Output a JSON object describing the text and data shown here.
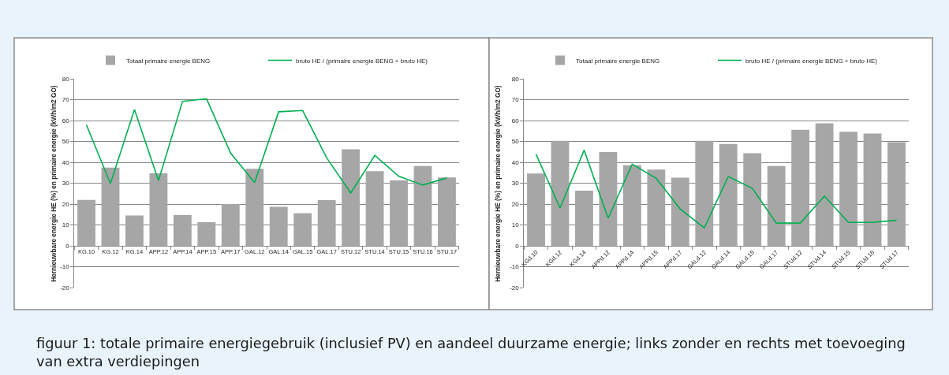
{
  "chart_data": [
    {
      "type": "bar",
      "categories": [
        "KG.10",
        "KG.12",
        "KG.14",
        "APP.12",
        "APP.14",
        "APP.15",
        "APP.17",
        "GAL.12",
        "GAL.14",
        "GAL.15",
        "GAL.17",
        "STU.12",
        "STU.14",
        "STU.15",
        "STU.16",
        "STU.17"
      ],
      "series": [
        {
          "name": "Totaal primaire energie BENG",
          "color": "#a6a6a6",
          "values": [
            22.0,
            37.5,
            14.5,
            34.7,
            14.7,
            11.3,
            20.0,
            36.9,
            18.7,
            15.6,
            21.9,
            46.2,
            35.8,
            31.3,
            38.2,
            32.7
          ]
        },
        {
          "name": "bruto HE / (primaire energie BENG + bruto HE)",
          "type": "line",
          "color": "#00b050",
          "values": [
            57.9,
            29.8,
            65.3,
            31.2,
            69.2,
            70.4,
            44.4,
            30.3,
            64.2,
            64.8,
            42.1,
            25.3,
            43.3,
            33.3,
            29.1,
            32.5
          ]
        }
      ],
      "ylabel": "Hernieuwbare energie HE (%) en primaire energie (kWh/m2 GO)",
      "ylim": [
        -20,
        80
      ],
      "yticks": [
        -20,
        -10,
        0,
        10,
        20,
        30,
        40,
        50,
        60,
        70,
        80
      ],
      "grid": "y",
      "legend": "top"
    },
    {
      "type": "bar",
      "categories": [
        "KGd.10",
        "KGd.12",
        "KGd.14",
        "APPd.12",
        "APPd.14",
        "APPd.15",
        "APPd.17",
        "GALd.12",
        "GALd.14",
        "GALd.15",
        "GALd.17",
        "STUd.12",
        "STUd.14",
        "STUd.15",
        "STUd.16",
        "STUd.17"
      ],
      "series": [
        {
          "name": "Totaal primaire energie BENG",
          "color": "#a6a6a6",
          "values": [
            34.6,
            50.3,
            26.4,
            44.9,
            38.6,
            36.5,
            32.6,
            50.3,
            48.8,
            44.3,
            38.2,
            55.6,
            58.7,
            54.6,
            53.8,
            49.6
          ]
        },
        {
          "name": "bruto HE / (primaire energie BENG + bruto HE)",
          "type": "line",
          "color": "#00b050",
          "values": [
            43.8,
            18.1,
            45.8,
            13.2,
            39.1,
            32.3,
            17.6,
            8.6,
            33.2,
            27.5,
            10.9,
            10.9,
            23.8,
            11.2,
            11.2,
            12.2
          ]
        }
      ],
      "ylabel": "Hernieuwbare energie HE (%) en primaire energie (kWh/m2 GO)",
      "ylim": [
        -20,
        80
      ],
      "yticks": [
        -20,
        -10,
        0,
        10,
        20,
        30,
        40,
        50,
        60,
        70,
        80
      ],
      "grid": "y",
      "legend": "top",
      "annotations": [
        "figuur 1: totale primaire energiegebruik (inclusief PV) en aandeel duurzame energie; links zonder en rechts met toevoeging van extra verdiepingen"
      ]
    }
  ]
}
